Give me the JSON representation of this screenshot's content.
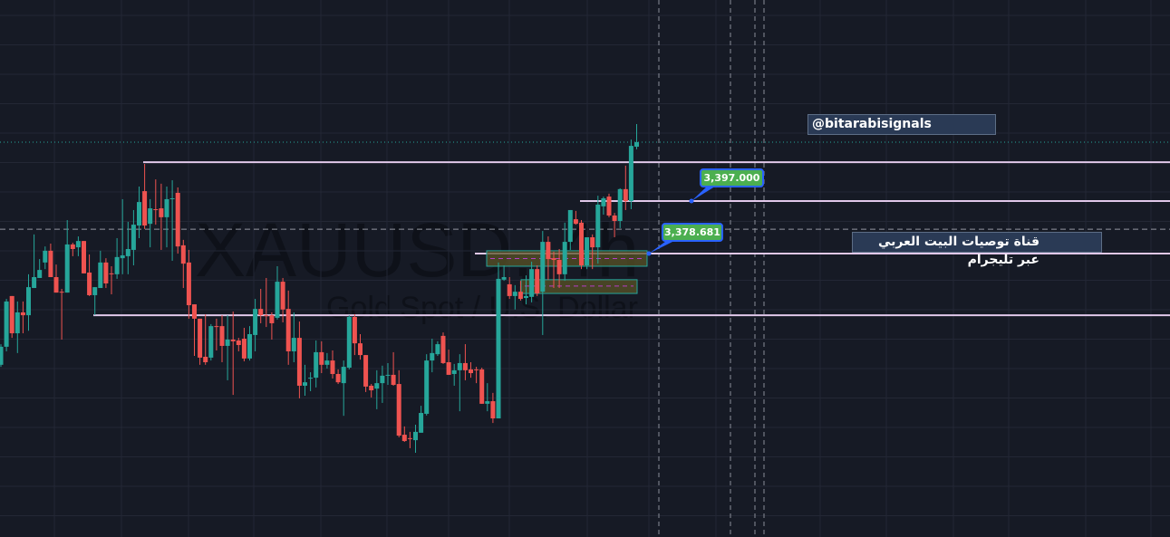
{
  "watermark": {
    "symbol": "XAUUSD, 4h",
    "description": "Gold Spot / U.S. Dollar"
  },
  "annotations": {
    "label_upper": "3,397.000",
    "label_lower": "3,378.681",
    "channel_handle": "@bitarabisignals",
    "channel_text_ar": "قناة توصيات البيت العربي عبر تليجرام"
  },
  "colors": {
    "background": "#161a25",
    "up": "#26a69a",
    "down": "#ef5350",
    "level_line": "#e1c8ea",
    "label_bg": "#4caf50",
    "label_border": "#2962ff",
    "zone_fill": "#5a5326",
    "zone_border": "#26a69a",
    "zone_mid": "#b43cc8"
  },
  "chart_data": {
    "type": "candlestick",
    "symbol": "XAUUSD",
    "timeframe": "4h",
    "grid": true,
    "current_price": 3417.4,
    "crosshair_price": 3387.0,
    "horizontal_levels": [
      3410.4,
      3397.0,
      3378.681,
      3357.0
    ],
    "zones": [
      {
        "top": 3379.5,
        "bottom": 3374.1,
        "mid": 3376.8
      },
      {
        "top": 3369.4,
        "bottom": 3364.6,
        "mid": 3367.2
      }
    ],
    "candles_ohlc": [
      [
        3339.7,
        3346.9,
        3339.0,
        3346.0
      ],
      [
        3346.0,
        3362.7,
        3344.4,
        3361.8
      ],
      [
        3363.7,
        3363.7,
        3349.1,
        3350.7
      ],
      [
        3350.7,
        3361.8,
        3343.8,
        3358.0
      ],
      [
        3358.0,
        3361.8,
        3350.7,
        3357.0
      ],
      [
        3357.0,
        3371.3,
        3351.6,
        3366.8
      ],
      [
        3366.5,
        3385.2,
        3366.5,
        3370.3
      ],
      [
        3370.0,
        3376.6,
        3370.0,
        3372.8
      ],
      [
        3375.4,
        3381.0,
        3373.1,
        3379.5
      ],
      [
        3379.5,
        3382.0,
        3370.3,
        3370.3
      ],
      [
        3370.3,
        3374.7,
        3364.9,
        3364.9
      ],
      [
        3365.2,
        3366.2,
        3348.5,
        3365.0
      ],
      [
        3364.9,
        3390.2,
        3364.9,
        3381.7
      ],
      [
        3381.7,
        3382.3,
        3377.6,
        3380.1
      ],
      [
        3380.7,
        3384.5,
        3377.6,
        3382.9
      ],
      [
        3382.9,
        3382.9,
        3371.6,
        3371.6
      ],
      [
        3371.9,
        3378.2,
        3363.7,
        3364.0
      ],
      [
        3364.0,
        3366.8,
        3357.0,
        3366.8
      ],
      [
        3366.5,
        3379.5,
        3366.5,
        3375.4
      ],
      [
        3375.4,
        3376.9,
        3366.5,
        3368.1
      ],
      [
        3371.6,
        3374.1,
        3364.3,
        3371.4
      ],
      [
        3371.3,
        3383.9,
        3369.7,
        3377.3
      ],
      [
        3376.9,
        3397.5,
        3371.3,
        3377.9
      ],
      [
        3377.6,
        3389.6,
        3371.3,
        3380.1
      ],
      [
        3379.8,
        3393.7,
        3374.4,
        3388.6
      ],
      [
        3388.3,
        3401.9,
        3383.9,
        3396.5
      ],
      [
        3400.3,
        3409.8,
        3387.1,
        3388.3
      ],
      [
        3388.9,
        3397.5,
        3380.7,
        3394.3
      ],
      [
        3394.0,
        3404.4,
        3388.6,
        3393.8
      ],
      [
        3394.3,
        3402.9,
        3379.8,
        3391.2
      ],
      [
        3391.2,
        3401.9,
        3380.7,
        3397.5
      ],
      [
        3397.6,
        3404.1,
        3376.0,
        3397.8
      ],
      [
        3399.7,
        3401.6,
        3378.5,
        3381.0
      ],
      [
        3381.4,
        3383.3,
        3366.5,
        3375.0
      ],
      [
        3375.4,
        3379.8,
        3355.8,
        3360.5
      ],
      [
        3360.8,
        3360.8,
        3342.8,
        3355.8
      ],
      [
        3355.8,
        3355.8,
        3339.7,
        3342.2
      ],
      [
        3342.5,
        3357.3,
        3339.7,
        3340.6
      ],
      [
        3342.2,
        3353.9,
        3341.2,
        3353.2
      ],
      [
        3353.2,
        3355.8,
        3344.7,
        3352.9
      ],
      [
        3353.2,
        3357.0,
        3340.6,
        3346.3
      ],
      [
        3346.3,
        3357.0,
        3334.3,
        3348.5
      ],
      [
        3348.5,
        3358.3,
        3329.2,
        3347.9
      ],
      [
        3348.2,
        3349.1,
        3344.4,
        3346.6
      ],
      [
        3348.8,
        3352.6,
        3340.9,
        3341.9
      ],
      [
        3341.9,
        3353.2,
        3341.2,
        3350.4
      ],
      [
        3350.1,
        3362.7,
        3344.4,
        3359.2
      ],
      [
        3359.2,
        3366.2,
        3354.2,
        3357.0
      ],
      [
        3357.0,
        3370.0,
        3352.9,
        3356.8
      ],
      [
        3357.0,
        3358.0,
        3348.5,
        3354.2
      ],
      [
        3356.1,
        3374.1,
        3355.5,
        3368.7
      ],
      [
        3368.7,
        3370.0,
        3354.5,
        3359.0
      ],
      [
        3359.2,
        3365.6,
        3339.7,
        3344.4
      ],
      [
        3344.4,
        3358.0,
        3340.6,
        3349.1
      ],
      [
        3349.1,
        3354.8,
        3328.0,
        3332.4
      ],
      [
        3332.4,
        3339.7,
        3328.9,
        3333.6
      ],
      [
        3335.0,
        3337.1,
        3330.5,
        3335.2
      ],
      [
        3335.2,
        3348.2,
        3331.8,
        3344.1
      ],
      [
        3344.1,
        3347.9,
        3336.8,
        3339.7
      ],
      [
        3339.7,
        3343.8,
        3338.4,
        3341.2
      ],
      [
        3341.2,
        3344.7,
        3334.9,
        3336.5
      ],
      [
        3336.5,
        3338.1,
        3333.0,
        3333.6
      ],
      [
        3333.3,
        3341.2,
        3321.9,
        3339.0
      ],
      [
        3338.7,
        3357.0,
        3338.1,
        3356.4
      ],
      [
        3356.4,
        3357.3,
        3343.1,
        3347.2
      ],
      [
        3347.2,
        3350.4,
        3341.5,
        3343.1
      ],
      [
        3343.1,
        3343.1,
        3330.2,
        3332.1
      ],
      [
        3332.4,
        3333.0,
        3328.3,
        3330.8
      ],
      [
        3331.4,
        3337.8,
        3324.2,
        3333.3
      ],
      [
        3333.3,
        3339.4,
        3326.4,
        3335.9
      ],
      [
        3336.0,
        3340.3,
        3332.7,
        3336.2
      ],
      [
        3336.2,
        3344.1,
        3332.4,
        3332.7
      ],
      [
        3333.0,
        3337.8,
        3314.4,
        3315.0
      ],
      [
        3315.3,
        3318.2,
        3312.8,
        3313.1
      ],
      [
        3314.1,
        3316.3,
        3310.6,
        3313.9
      ],
      [
        3313.4,
        3318.8,
        3309.0,
        3316.3
      ],
      [
        3316.0,
        3325.4,
        3316.0,
        3322.9
      ],
      [
        3322.6,
        3343.4,
        3322.0,
        3341.2
      ],
      [
        3341.2,
        3348.8,
        3337.1,
        3343.8
      ],
      [
        3343.4,
        3347.9,
        3342.8,
        3346.9
      ],
      [
        3349.8,
        3351.0,
        3340.0,
        3340.3
      ],
      [
        3340.6,
        3345.0,
        3336.2,
        3336.2
      ],
      [
        3336.5,
        3340.0,
        3332.4,
        3337.8
      ],
      [
        3337.8,
        3343.4,
        3323.5,
        3340.3
      ],
      [
        3340.3,
        3346.9,
        3334.3,
        3337.8
      ],
      [
        3338.1,
        3340.6,
        3335.2,
        3336.8
      ],
      [
        3338.1,
        3339.0,
        3333.3,
        3337.8
      ],
      [
        3338.1,
        3338.7,
        3326.1,
        3326.1
      ],
      [
        3326.1,
        3333.3,
        3323.5,
        3327.0
      ],
      [
        3327.0,
        3329.9,
        3319.4,
        3321.0
      ],
      [
        3321.0,
        3375.4,
        3321.0,
        3369.7
      ],
      [
        3369.4,
        3374.4,
        3369.0,
        3370.3
      ],
      [
        3367.8,
        3370.3,
        3362.7,
        3363.7
      ],
      [
        3363.7,
        3367.5,
        3359.0,
        3365.2
      ],
      [
        3365.2,
        3369.0,
        3362.1,
        3362.7
      ],
      [
        3363.0,
        3370.9,
        3360.8,
        3363.7
      ],
      [
        3363.4,
        3375.7,
        3361.5,
        3373.1
      ],
      [
        3373.1,
        3374.4,
        3363.7,
        3364.6
      ],
      [
        3365.2,
        3386.4,
        3350.1,
        3382.6
      ],
      [
        3382.6,
        3384.5,
        3369.4,
        3376.6
      ],
      [
        3376.9,
        3379.2,
        3366.5,
        3376.3
      ],
      [
        3376.3,
        3380.1,
        3366.5,
        3371.3
      ],
      [
        3371.3,
        3389.3,
        3369.0,
        3382.6
      ],
      [
        3382.6,
        3393.7,
        3379.8,
        3393.7
      ],
      [
        3390.5,
        3393.4,
        3388.6,
        3388.9
      ],
      [
        3389.3,
        3390.2,
        3373.1,
        3374.4
      ],
      [
        3374.4,
        3384.2,
        3373.1,
        3384.2
      ],
      [
        3384.2,
        3385.2,
        3373.1,
        3380.7
      ],
      [
        3380.7,
        3398.7,
        3375.0,
        3395.6
      ],
      [
        3395.0,
        3398.4,
        3392.1,
        3397.8
      ],
      [
        3398.4,
        3399.4,
        3391.2,
        3391.8
      ],
      [
        3391.8,
        3392.7,
        3384.2,
        3389.9
      ],
      [
        3389.9,
        3401.3,
        3387.4,
        3401.0
      ],
      [
        3401.0,
        3409.2,
        3393.7,
        3396.8
      ],
      [
        3396.8,
        3418.3,
        3394.0,
        3416.1
      ],
      [
        3415.8,
        3423.7,
        3414.9,
        3417.4
      ]
    ]
  }
}
